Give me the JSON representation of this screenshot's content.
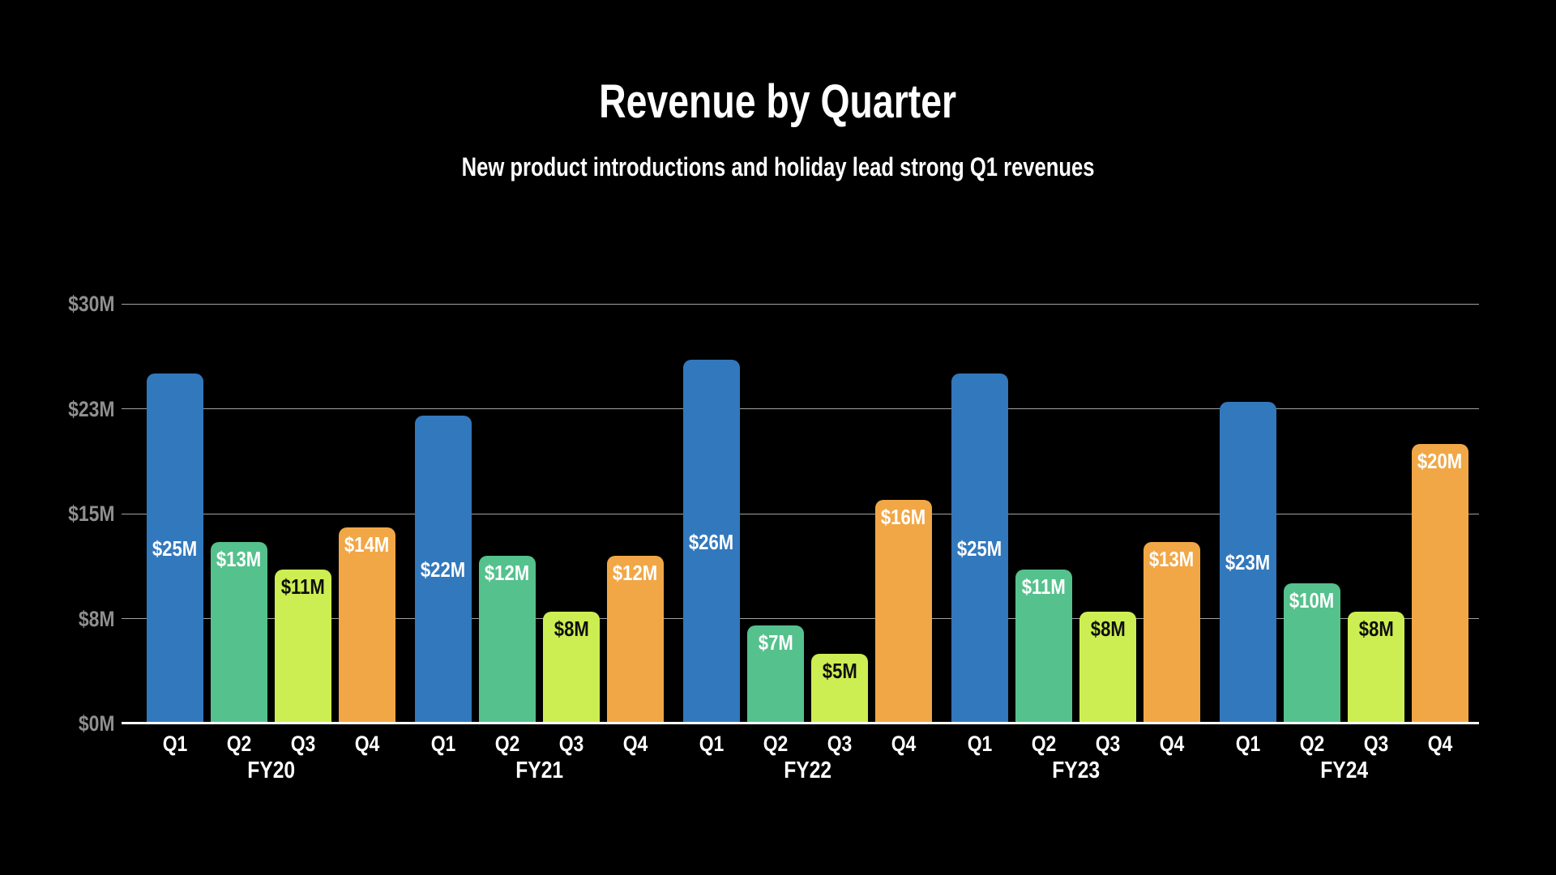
{
  "header": {
    "title": "Revenue by Quarter",
    "subtitle": "New product introductions and holiday lead strong Q1 revenues"
  },
  "colors": {
    "background": "#000000",
    "title_text": "#FFFFFF",
    "axis_tick_text": "#8F8F8F",
    "category_text": "#FFFFFF",
    "gridline": "#BDBDBD",
    "baseline": "#FFFFFF",
    "q1_bar": "#3278BD",
    "q2_bar": "#55C18D",
    "q3_bar": "#CDEE52",
    "q4_bar": "#F1A746"
  },
  "chart_data": {
    "type": "bar",
    "title": "Revenue by Quarter",
    "subtitle": "New product introductions and holiday lead strong Q1 revenues",
    "categories": [
      "FY20",
      "FY21",
      "FY22",
      "FY23",
      "FY24"
    ],
    "series": [
      {
        "name": "Q1",
        "color": "#3278BD",
        "label_color": "#FFFFFF",
        "label_position": "center",
        "values": [
          25,
          22,
          26,
          25,
          23
        ],
        "labels": [
          "$25M",
          "$22M",
          "$26M",
          "$25M",
          "$23M"
        ]
      },
      {
        "name": "Q2",
        "color": "#55C18D",
        "label_color": "#FFFFFF",
        "label_position": "inside-top",
        "values": [
          13,
          12,
          7,
          11,
          10
        ],
        "labels": [
          "$13M",
          "$12M",
          "$7M",
          "$11M",
          "$10M"
        ]
      },
      {
        "name": "Q3",
        "color": "#CDEE52",
        "label_color": "#0E0E0E",
        "label_position": "inside-top",
        "values": [
          11,
          8,
          5,
          8,
          8
        ],
        "labels": [
          "$11M",
          "$8M",
          "$5M",
          "$8M",
          "$8M"
        ]
      },
      {
        "name": "Q4",
        "color": "#F1A746",
        "label_color": "#FFFFFF",
        "label_position": "inside-top",
        "values": [
          14,
          12,
          16,
          13,
          20
        ],
        "labels": [
          "$14M",
          "$12M",
          "$16M",
          "$13M",
          "$20M"
        ]
      }
    ],
    "ylim": [
      0,
      30
    ],
    "yticks": [
      {
        "value": 0,
        "label": "$0M"
      },
      {
        "value": 7.5,
        "label": "$8M"
      },
      {
        "value": 15,
        "label": "$15M"
      },
      {
        "value": 22.5,
        "label": "$23M"
      },
      {
        "value": 30,
        "label": "$30M"
      }
    ],
    "grid": true,
    "legend": "none",
    "background": "#000000"
  }
}
